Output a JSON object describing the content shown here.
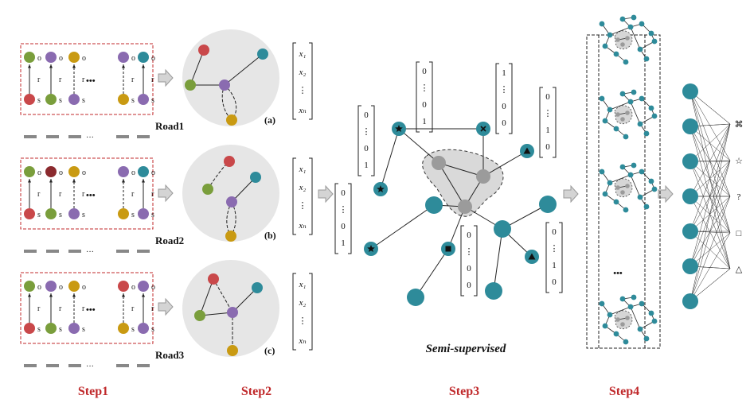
{
  "steps": [
    "Step1",
    "Step2",
    "Step3",
    "Step4"
  ],
  "roads": [
    "Road1",
    "Road2",
    "Road3"
  ],
  "panels": [
    "(a)",
    "(b)",
    "(c)"
  ],
  "relation_labels": {
    "object": "o",
    "subject": "s",
    "relation": "r",
    "dots": "•••",
    "dash_dots": "···"
  },
  "feature_vector": {
    "first": "x₁",
    "second": "x₂",
    "vdots": "⋮",
    "last": "xₙ"
  },
  "onehot_vectors": {
    "v_left": [
      "0",
      "⋮",
      "0",
      "1"
    ],
    "v_top1": [
      "0",
      "⋮",
      "0",
      "1"
    ],
    "v_top2": [
      "1",
      "⋮",
      "0",
      "0"
    ],
    "v_right1": [
      "0",
      "⋮",
      "1",
      "0"
    ],
    "v_center": [
      "0",
      "⋮",
      "0",
      "0"
    ],
    "v_right2": [
      "0",
      "⋮",
      "1",
      "0"
    ],
    "v_mid": [
      "0",
      "⋮",
      "0",
      "1"
    ]
  },
  "semi_label": "Semi-supervised",
  "step4_dots": "•••",
  "output_symbols": [
    "⌘",
    "☆",
    "?",
    "□",
    "△"
  ],
  "colors": {
    "teal": "#2e8b9a",
    "red": "#c9484a",
    "green": "#7a9e3c",
    "purple": "#8a6bb0",
    "gold": "#c99a12",
    "darkred": "#8b2a2e",
    "gray_node": "#9b9b9b",
    "step_red": "#c0292b",
    "box_red": "#c0292b",
    "circle_bg": "#e6e6e6"
  }
}
